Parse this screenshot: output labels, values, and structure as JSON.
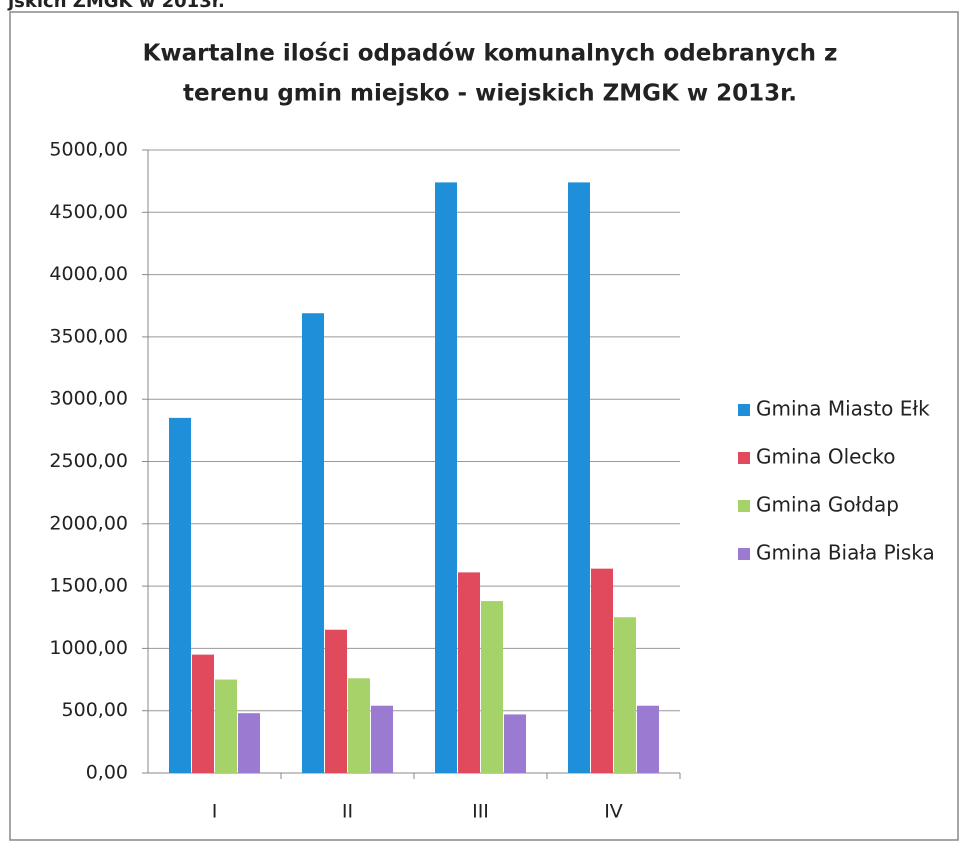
{
  "chart_data": {
    "type": "bar",
    "header_fragment": "jskich ZMGK w 2013r.",
    "title": [
      "Kwartalne ilości odpadów komunalnych odebranych z",
      "terenu gmin miejsko - wiejskich ZMGK w 2013r."
    ],
    "categories": [
      "I",
      "II",
      "III",
      "IV"
    ],
    "series": [
      {
        "name": "Gmina Miasto Ełk",
        "color": "#1f8fd9",
        "values": [
          2850,
          3690,
          4740,
          4740
        ]
      },
      {
        "name": "Gmina Olecko",
        "color": "#e04a5c",
        "values": [
          950,
          1150,
          1610,
          1640
        ]
      },
      {
        "name": "Gmina Gołdap",
        "color": "#a5d36a",
        "values": [
          750,
          760,
          1380,
          1250
        ]
      },
      {
        "name": "Gmina Biała Piska",
        "color": "#9b7bd2",
        "values": [
          480,
          540,
          470,
          540
        ]
      }
    ],
    "ylim": [
      0,
      5000
    ],
    "yticks": [
      {
        "value": 0,
        "label": "0,00"
      },
      {
        "value": 500,
        "label": "500,00"
      },
      {
        "value": 1000,
        "label": "1000,00"
      },
      {
        "value": 1500,
        "label": "1500,00"
      },
      {
        "value": 2000,
        "label": "2000,00"
      },
      {
        "value": 2500,
        "label": "2500,00"
      },
      {
        "value": 3000,
        "label": "3000,00"
      },
      {
        "value": 3500,
        "label": "3500,00"
      },
      {
        "value": 4000,
        "label": "4000,00"
      },
      {
        "value": 4500,
        "label": "4500,00"
      },
      {
        "value": 5000,
        "label": "5000,00"
      }
    ],
    "grid": true,
    "legend": "right"
  }
}
